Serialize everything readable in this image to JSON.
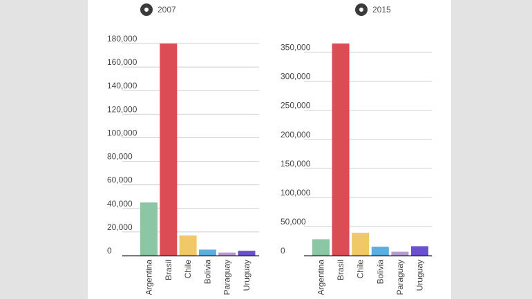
{
  "chart_data": [
    {
      "type": "bar",
      "legend": "2007",
      "legend_placement": "top-left",
      "categories": [
        "Argentina",
        "Brasil",
        "Chile",
        "Bolivia",
        "Paraguay",
        "Uruguay"
      ],
      "values": [
        45000,
        180000,
        17000,
        5000,
        2500,
        4000
      ],
      "colors": [
        "#8bc6a5",
        "#dc4c55",
        "#f0c866",
        "#5aaee0",
        "#b79ad0",
        "#6a4fd0"
      ],
      "yticks": [
        "0",
        "20,000",
        "40,000",
        "60,000",
        "80,000",
        "100,000",
        "120,000",
        "140,000",
        "160,000",
        "180,000"
      ],
      "ylim": [
        0,
        180000
      ],
      "grid": true
    },
    {
      "type": "bar",
      "legend": "2015",
      "legend_placement": "top-left",
      "categories": [
        "Argentina",
        "Brasil",
        "Chile",
        "Bolivia",
        "Paraguay",
        "Uruguay"
      ],
      "values": [
        28000,
        365000,
        39000,
        15000,
        6500,
        16000
      ],
      "colors": [
        "#8bc6a5",
        "#dc4c55",
        "#f0c866",
        "#5aaee0",
        "#b79ad0",
        "#6a4fd0"
      ],
      "yticks": [
        "0",
        "50,000",
        "100,000",
        "150,000",
        "200,000",
        "250,000",
        "300,000",
        "350,000"
      ],
      "ylim": [
        0,
        365000
      ],
      "grid": true
    }
  ]
}
